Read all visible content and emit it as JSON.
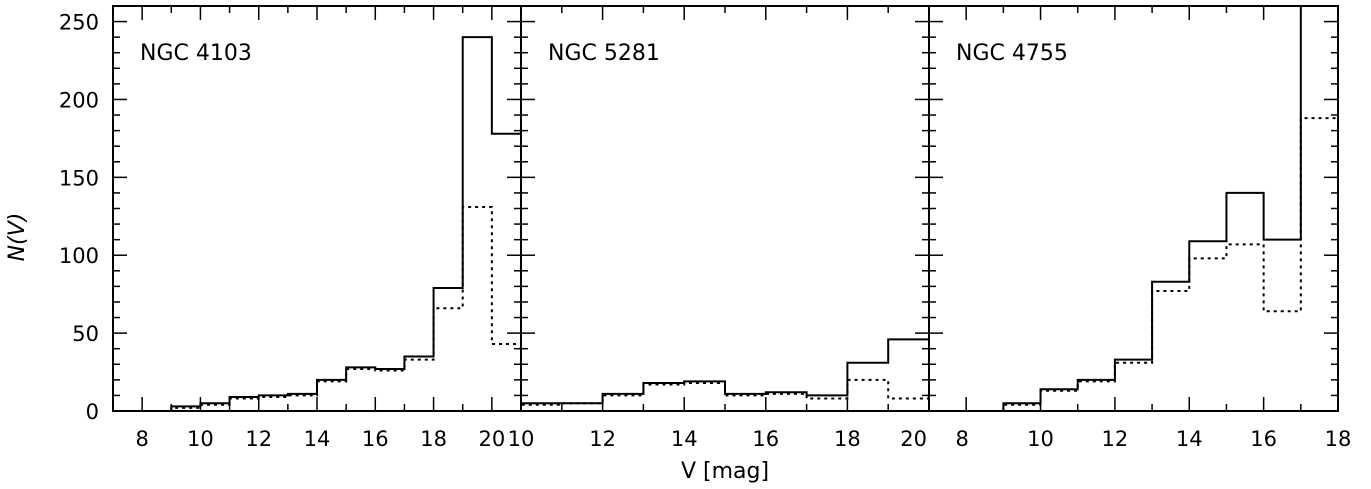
{
  "chart_data": {
    "type": "histogram",
    "xlabel": "V [mag]",
    "ylabel": "N(V)",
    "ylim": [
      0,
      260
    ],
    "y_ticks": [
      0,
      50,
      100,
      150,
      200,
      250
    ],
    "line_styles": {
      "all": "solid",
      "selected": "dotted"
    },
    "panels": [
      {
        "label": "NGC 4103",
        "xlim": [
          7,
          21
        ],
        "x_ticks": [
          8,
          10,
          12,
          14,
          16,
          18,
          20
        ],
        "bins": [
          9,
          10,
          11,
          12,
          13,
          14,
          15,
          16,
          17,
          18,
          19,
          20,
          21
        ],
        "series": [
          {
            "style": "solid",
            "values": [
              3,
              5,
              9,
              10,
              11,
              20,
              28,
              27,
              35,
              79,
              240,
              178
            ]
          },
          {
            "style": "dotted",
            "values": [
              2,
              4,
              8,
              9,
              10,
              19,
              27,
              26,
              33,
              66,
              131,
              43
            ]
          }
        ]
      },
      {
        "label": "NGC 5281",
        "xlim": [
          10,
          20
        ],
        "x_ticks": [
          10,
          12,
          14,
          16,
          18,
          20
        ],
        "bins": [
          10,
          11,
          12,
          13,
          14,
          15,
          16,
          17,
          18,
          19,
          20
        ],
        "series": [
          {
            "style": "solid",
            "values": [
              5,
              5,
              11,
              18,
              19,
              11,
              12,
              10,
              31,
              46
            ]
          },
          {
            "style": "dotted",
            "values": [
              4,
              5,
              10,
              17,
              18,
              10,
              11,
              8,
              20,
              8
            ]
          }
        ]
      },
      {
        "label": "NGC 4755",
        "xlim": [
          7,
          18
        ],
        "x_ticks": [
          8,
          10,
          12,
          14,
          16,
          18
        ],
        "bins": [
          9,
          10,
          11,
          12,
          13,
          14,
          15,
          16,
          17,
          18
        ],
        "series": [
          {
            "style": "solid",
            "values": [
              5,
              14,
              20,
              33,
              83,
              109,
              140,
              110,
              265
            ]
          },
          {
            "style": "dotted",
            "values": [
              4,
              13,
              19,
              31,
              77,
              98,
              107,
              64,
              188
            ]
          }
        ]
      }
    ]
  }
}
